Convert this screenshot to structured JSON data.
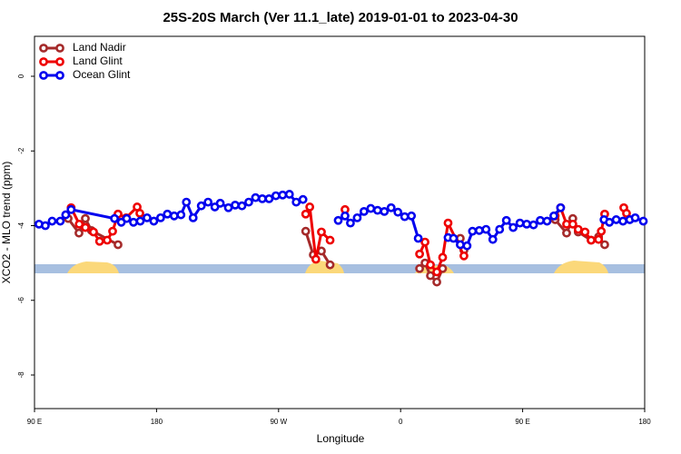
{
  "chart_data": {
    "type": "line",
    "title": "25S-20S March (Ver 11.1_late)   2019-01-01 to 2023-04-30",
    "x_label": "Longitude",
    "y_label": "XCO2 - MLO trend (ppm)",
    "xlim": [
      90,
      540
    ],
    "ylim": [
      -8.9,
      1.07
    ],
    "xticks": [
      {
        "value": 90,
        "label": "90 E"
      },
      180,
      {
        "value": 270,
        "label": "90 W"
      },
      {
        "value": 360,
        "label": "0"
      },
      {
        "value": 450,
        "label": "90 E"
      },
      {
        "value": 540,
        "label": "180"
      }
    ],
    "yticks": [
      0,
      -2,
      -4,
      -6,
      -8
    ],
    "legend": "top-left",
    "series": [
      {
        "name": "Land Nadir",
        "color": "#a52a2a",
        "x": [
          114.8,
          122.8,
          127.5,
          132,
          151.6,
          null,
          290,
          295.6,
          301.6,
          308,
          null,
          374,
          378,
          382,
          386.7,
          391,
          null,
          404,
          406.7,
          null,
          474,
          482.4,
          487,
          491,
          500.5,
          506,
          510.5
        ],
        "values": [
          -3.81,
          -4.2,
          -3.81,
          -4.13,
          -4.51,
          null,
          -4.15,
          -4.78,
          -4.68,
          -5.05,
          null,
          -5.15,
          -5.0,
          -5.34,
          -5.51,
          -5.15,
          null,
          -4.34,
          -4.66,
          null,
          -3.84,
          -4.2,
          -3.81,
          -4.17,
          -4.39,
          -4.3,
          -4.51
        ]
      },
      {
        "name": "Land Glint",
        "color": "#ee0000",
        "x": [
          117,
          123,
          127.5,
          133.5,
          138,
          143.6,
          147.6,
          151.6,
          157.6,
          165.7,
          167.7,
          null,
          290,
          293,
          297.5,
          301.6,
          308,
          null,
          319,
          null,
          374,
          378,
          382,
          386.7,
          391,
          395,
          406.7,
          null,
          474,
          478,
          482.4,
          487,
          491,
          496,
          500.5,
          506,
          508,
          510.5,
          null,
          524.6,
          526.6
        ],
        "values": [
          -3.52,
          -3.96,
          -4.05,
          -4.17,
          -4.42,
          -4.39,
          -4.15,
          -3.69,
          -3.79,
          -3.5,
          -3.67,
          null,
          -3.69,
          -3.5,
          -4.9,
          -4.17,
          -4.39,
          null,
          -3.57,
          null,
          -4.76,
          -4.44,
          -5.05,
          -5.24,
          -4.85,
          -3.93,
          -4.81,
          null,
          -3.74,
          -3.52,
          -3.96,
          -3.96,
          -4.1,
          -4.17,
          -4.39,
          -4.37,
          -4.15,
          -3.69,
          null,
          -3.52,
          -3.67
        ]
      },
      {
        "name": "Ocean Glint",
        "color": "#0000ee",
        "x": [
          93.3,
          98,
          103,
          109,
          113,
          117,
          149,
          154,
          158,
          163,
          168,
          173,
          178,
          183,
          188,
          193,
          198,
          202,
          207,
          213,
          218,
          223,
          227,
          233,
          238,
          243,
          248,
          253,
          258,
          263,
          268,
          273,
          278,
          283,
          288,
          null,
          314,
          319,
          323,
          328,
          333,
          338,
          343,
          348,
          353,
          358,
          363,
          368,
          373,
          null,
          395,
          399,
          404,
          409,
          413,
          418,
          423,
          428,
          433,
          438,
          443,
          448,
          453,
          458,
          463,
          468,
          473,
          478,
          null,
          510,
          514,
          519,
          524,
          529,
          533,
          539
        ],
        "values": [
          -3.96,
          -4.0,
          -3.88,
          -3.88,
          -3.71,
          -3.57,
          -3.81,
          -3.91,
          -3.81,
          -3.91,
          -3.88,
          -3.79,
          -3.88,
          -3.79,
          -3.69,
          -3.74,
          -3.71,
          -3.37,
          -3.79,
          -3.47,
          -3.37,
          -3.5,
          -3.4,
          -3.52,
          -3.45,
          -3.47,
          -3.37,
          -3.25,
          -3.28,
          -3.28,
          -3.2,
          -3.18,
          -3.16,
          -3.37,
          -3.3,
          null,
          -3.86,
          -3.74,
          -3.93,
          -3.79,
          -3.62,
          -3.54,
          -3.59,
          -3.62,
          -3.52,
          -3.64,
          -3.76,
          -3.74,
          -4.34,
          null,
          -4.32,
          -4.34,
          -4.51,
          -4.54,
          -4.15,
          -4.13,
          -4.1,
          -4.37,
          -4.1,
          -3.86,
          -4.05,
          -3.93,
          -3.96,
          -3.98,
          -3.86,
          -3.88,
          -3.74,
          -3.52,
          null,
          -3.84,
          -3.91,
          -3.84,
          -3.88,
          -3.84,
          -3.79,
          -3.88
        ]
      }
    ]
  }
}
